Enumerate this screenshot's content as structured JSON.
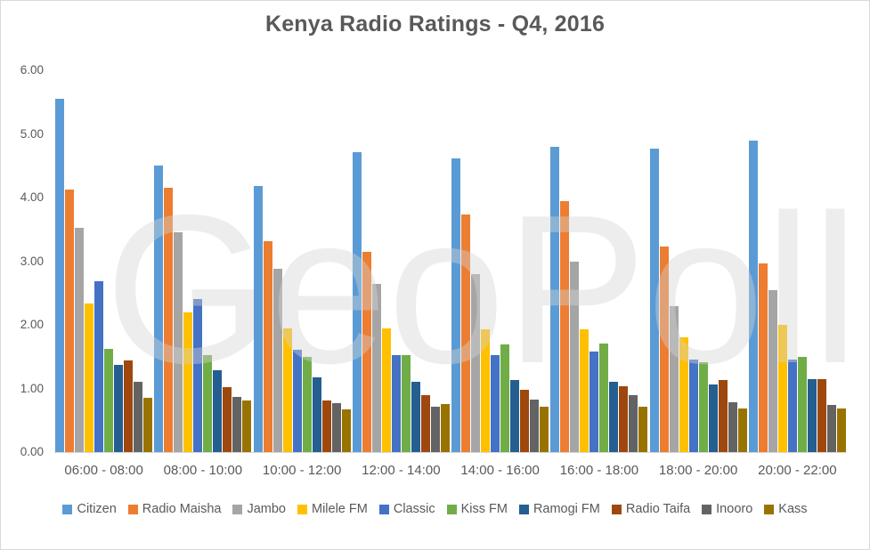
{
  "title": "Kenya Radio Ratings - Q4, 2016",
  "watermark_text": "GeoPoll",
  "colors": {
    "title_text": "#595959",
    "axis_text": "#595959",
    "axis_line": "#D9D9D9",
    "frame_border": "#D9D9D9"
  },
  "chart_data": {
    "type": "bar",
    "title": "Kenya Radio Ratings - Q4, 2016",
    "xlabel": "",
    "ylabel": "",
    "ylim": [
      0,
      6
    ],
    "ytick_labels": [
      "0.00",
      "1.00",
      "2.00",
      "3.00",
      "4.00",
      "5.00",
      "6.00"
    ],
    "grid": false,
    "legend_position": "bottom",
    "categories": [
      "06:00 - 08:00",
      "08:00 - 10:00",
      "10:00 - 12:00",
      "12:00 - 14:00",
      "14:00 - 16:00",
      "16:00 - 18:00",
      "18:00 - 20:00",
      "20:00 - 22:00"
    ],
    "series": [
      {
        "name": "Citizen",
        "color": "#5B9BD5",
        "values": [
          5.55,
          4.51,
          4.18,
          4.71,
          4.62,
          4.8,
          4.77,
          4.9
        ]
      },
      {
        "name": "Radio Maisha",
        "color": "#ED7D31",
        "values": [
          4.12,
          4.15,
          3.31,
          3.15,
          3.73,
          3.95,
          3.23,
          2.97
        ]
      },
      {
        "name": "Jambo",
        "color": "#A5A5A5",
        "values": [
          3.53,
          3.45,
          2.88,
          2.64,
          2.8,
          3.0,
          2.3,
          2.55
        ]
      },
      {
        "name": "Milele FM",
        "color": "#FFC000",
        "values": [
          2.34,
          2.19,
          1.95,
          1.94,
          1.93,
          1.93,
          1.8,
          2.0
        ]
      },
      {
        "name": "Classic",
        "color": "#4472C4",
        "values": [
          2.68,
          2.41,
          1.61,
          1.52,
          1.53,
          1.58,
          1.46,
          1.46
        ]
      },
      {
        "name": "Kiss FM",
        "color": "#70AD47",
        "values": [
          1.62,
          1.53,
          1.49,
          1.52,
          1.69,
          1.71,
          1.41,
          1.5
        ]
      },
      {
        "name": "Ramogi FM",
        "color": "#255E91",
        "values": [
          1.37,
          1.28,
          1.18,
          1.1,
          1.13,
          1.1,
          1.07,
          1.15
        ]
      },
      {
        "name": "Radio Taifa",
        "color": "#9E480E",
        "values": [
          1.44,
          1.02,
          0.81,
          0.9,
          0.98,
          1.03,
          1.13,
          1.15
        ]
      },
      {
        "name": "Inooro",
        "color": "#636363",
        "values": [
          1.11,
          0.87,
          0.77,
          0.72,
          0.82,
          0.9,
          0.79,
          0.74
        ]
      },
      {
        "name": "Kass",
        "color": "#997300",
        "values": [
          0.85,
          0.81,
          0.67,
          0.75,
          0.71,
          0.71,
          0.68,
          0.69
        ]
      }
    ]
  }
}
